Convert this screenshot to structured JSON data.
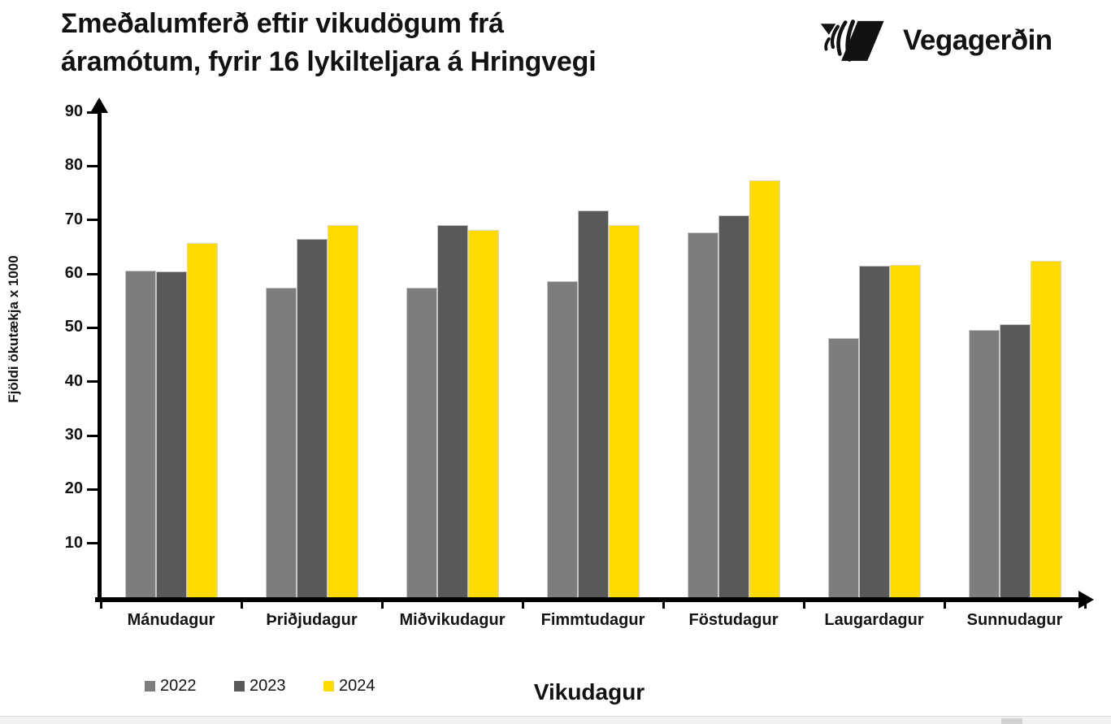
{
  "header": {
    "title_line1": "Σmeðalumferð eftir vikudögum frá",
    "title_line2": "áramótum, fyrir 16 lykilteljara á Hringvegi",
    "logo_text": "Vegagerðin"
  },
  "chart_data": {
    "type": "bar",
    "title": "Σmeðalumferð eftir vikudögum frá áramótum, fyrir 16 lykilteljara á Hringvegi",
    "xlabel": "Vikudagur",
    "ylabel": "Fjöldi ökutækja x 1000",
    "ylim": [
      0,
      90
    ],
    "yticks": [
      10,
      20,
      30,
      40,
      50,
      60,
      70,
      80,
      90
    ],
    "grid": false,
    "legend_position": "bottom-left",
    "categories": [
      "Mánudagur",
      "Þriðjudagur",
      "Miðvikudagur",
      "Fimmtudagur",
      "Föstudagur",
      "Laugardagur",
      "Sunnudagur"
    ],
    "series": [
      {
        "name": "2022",
        "color": "#7d7d7d",
        "values": [
          60.6,
          57.4,
          57.5,
          58.7,
          67.7,
          48.1,
          49.6
        ]
      },
      {
        "name": "2023",
        "color": "#595959",
        "values": [
          60.4,
          66.5,
          69.0,
          71.7,
          70.8,
          61.5,
          50.6
        ]
      },
      {
        "name": "2024",
        "color": "#ffdb00",
        "values": [
          65.7,
          69.0,
          68.2,
          69.1,
          77.4,
          61.6,
          62.4
        ]
      }
    ]
  }
}
